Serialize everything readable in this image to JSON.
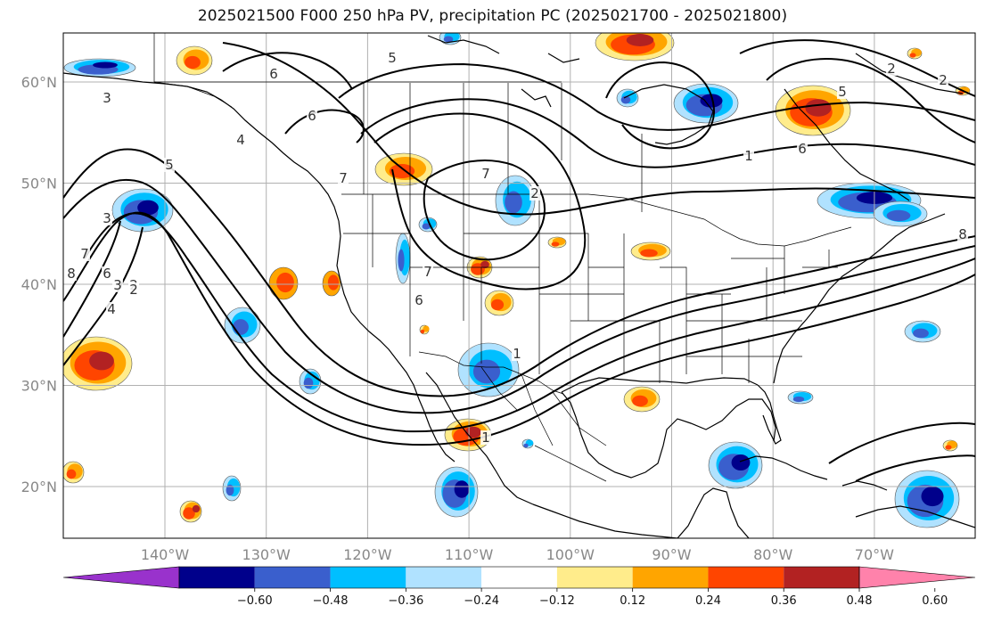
{
  "title": "2025021500 F000 250 hPa PV, precipitation PC (2025021700 - 2025021800)",
  "map": {
    "lon_range": [
      -150,
      -60
    ],
    "lat_range": [
      15,
      65
    ],
    "lat_labels": [
      "60°N",
      "50°N",
      "40°N",
      "30°N",
      "20°N"
    ],
    "lon_labels": [
      "140°W",
      "130°W",
      "120°W",
      "110°W",
      "100°W",
      "90°W",
      "80°W",
      "70°W"
    ],
    "grid": true
  },
  "pv_contour_labels": [
    "6",
    "5",
    "3",
    "2",
    "6",
    "5",
    "2",
    "4",
    "6",
    "7",
    "7",
    "2",
    "1",
    "5",
    "6",
    "7",
    "3",
    "2",
    "1",
    "8",
    "7",
    "6",
    "4",
    "3",
    "2",
    "1",
    "8"
  ],
  "colorbar": {
    "ticks": [
      "−0.60",
      "−0.48",
      "−0.36",
      "−0.24",
      "−0.12",
      "0.12",
      "0.24",
      "0.36",
      "0.48",
      "0.60"
    ],
    "colors": [
      "#9932cc",
      "#00008b",
      "#3a5fcd",
      "#00bfff",
      "#b0e2ff",
      "#ffffff",
      "#ffec8b",
      "#ffa500",
      "#ff4500",
      "#b22222",
      "#ff82ab"
    ],
    "extend": "both"
  }
}
